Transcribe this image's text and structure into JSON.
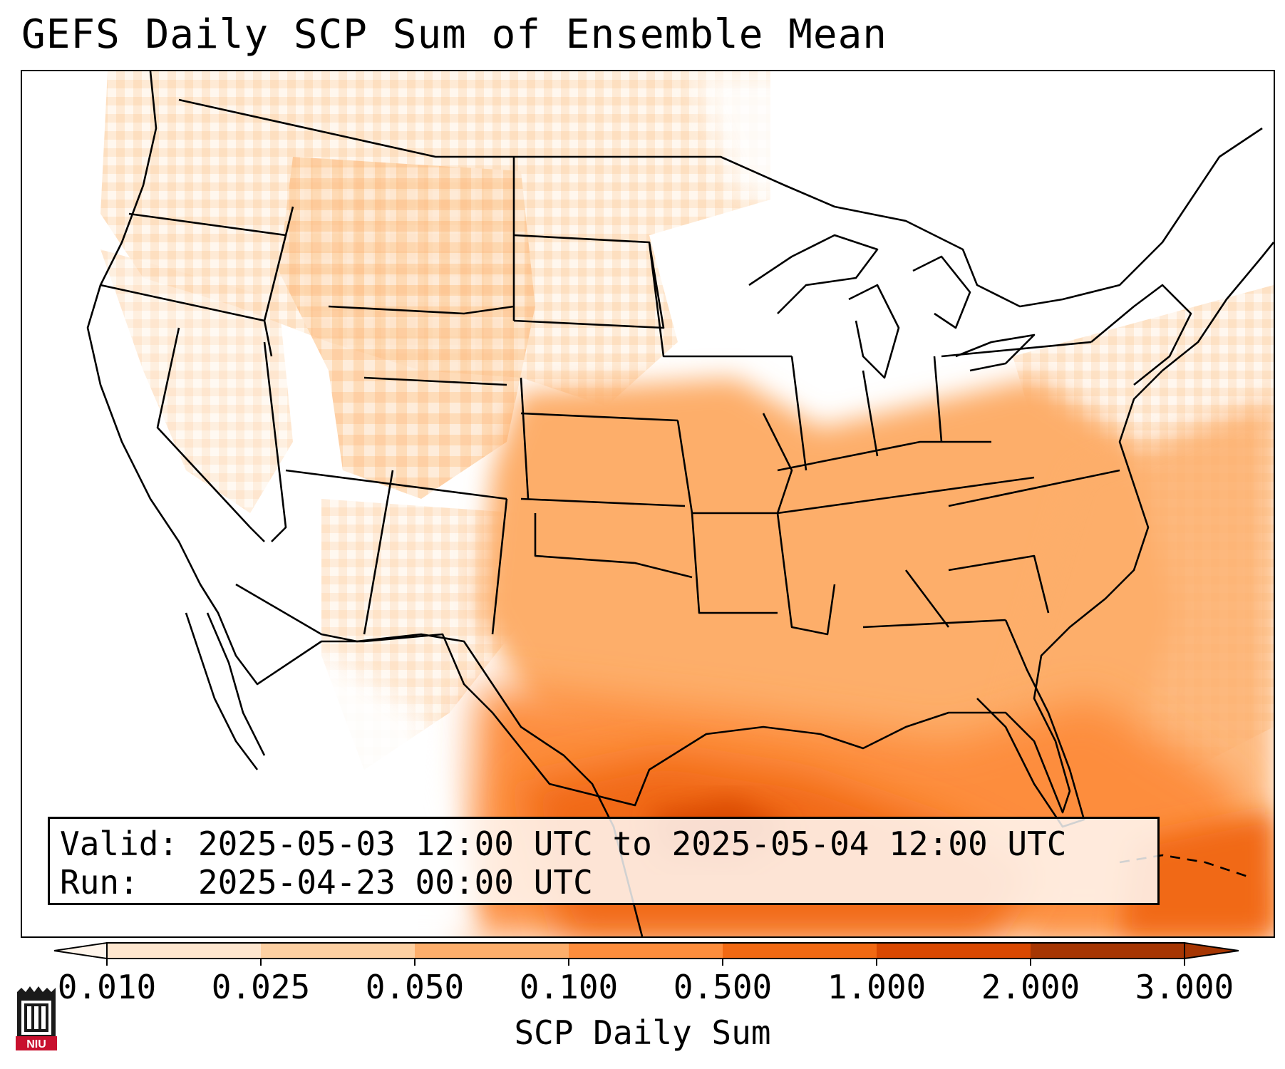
{
  "title": "GEFS Daily SCP Sum of Ensemble Mean",
  "info": {
    "valid_label": "Valid:",
    "valid_value": "2025-05-03 12:00 UTC to 2025-05-04 12:00 UTC",
    "run_label": "Run:",
    "run_value": "2025-04-23 00:00 UTC"
  },
  "colorbar": {
    "label": "SCP Daily Sum",
    "ticks": [
      "0.010",
      "0.025",
      "0.050",
      "0.100",
      "0.500",
      "1.000",
      "2.000",
      "3.000"
    ],
    "colors": [
      "#fff5eb",
      "#fee6ce",
      "#fdd0a2",
      "#fdae6b",
      "#fd8d3c",
      "#f16913",
      "#d94801",
      "#a63603"
    ],
    "extend": "both"
  },
  "logo": {
    "text": "NIU",
    "color": "#c8102e"
  },
  "map": {
    "region": "Continental United States",
    "field": "SCP daily sum, ensemble mean"
  }
}
